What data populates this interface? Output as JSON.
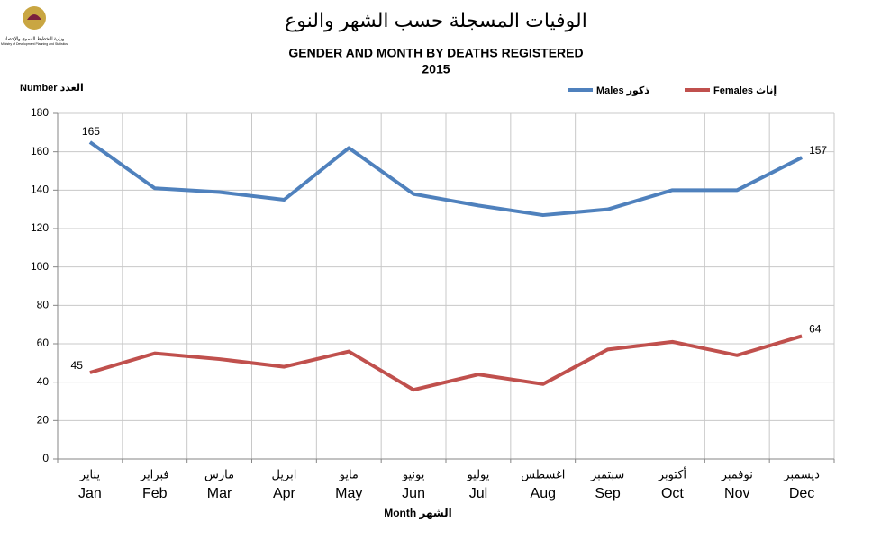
{
  "chart_data": {
    "type": "line",
    "title": "الوفيات المسجلة حسب الشهر والنوع",
    "subtitle": "GENDER AND MONTH BY DEATHS REGISTERED",
    "year": "2015",
    "logo_text_ar": "وزارة التخطيط التنموي والإحصاء",
    "logo_text_en": "Ministry of Development Planning and Statistics",
    "y_label": "Number العدد",
    "x_label": "Month الشهر",
    "categories": [
      "Jan",
      "Feb",
      "Mar",
      "Apr",
      "May",
      "Jun",
      "Jul",
      "Aug",
      "Sep",
      "Oct",
      "Nov",
      "Dec"
    ],
    "categories_ar": [
      "يناير",
      "فبراير",
      "مارس",
      "ابريل",
      "مايو",
      "يونيو",
      "يوليو",
      "اغسطس",
      "سبتمبر",
      "أكتوبر",
      "نوفمبر",
      "ديسمبر"
    ],
    "series": [
      {
        "name": "Males ذكور",
        "color": "#4f81bd",
        "values": [
          165,
          141,
          139,
          135,
          162,
          138,
          132,
          127,
          130,
          140,
          140,
          157
        ],
        "value_labels": [
          "165",
          null,
          null,
          null,
          null,
          null,
          null,
          null,
          null,
          null,
          null,
          "157"
        ]
      },
      {
        "name": "Females إناث",
        "color": "#c0504d",
        "values": [
          45,
          55,
          52,
          48,
          56,
          36,
          44,
          39,
          57,
          61,
          54,
          64
        ],
        "value_labels": [
          "45",
          null,
          null,
          null,
          null,
          null,
          null,
          null,
          null,
          null,
          null,
          "64"
        ]
      }
    ],
    "ylim": [
      0,
      180
    ],
    "yticks": [
      0,
      20,
      40,
      60,
      80,
      100,
      120,
      140,
      160,
      180
    ],
    "grid": true
  }
}
